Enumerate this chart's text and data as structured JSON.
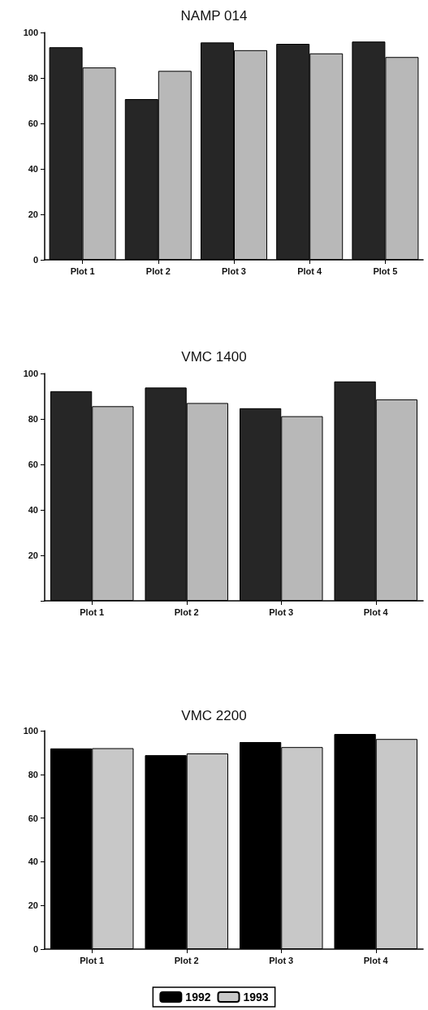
{
  "chart_data": [
    {
      "type": "bar",
      "title": "NAMP 014",
      "categories": [
        "Plot 1",
        "Plot 2",
        "Plot 3",
        "Plot 4",
        "Plot 5"
      ],
      "series": [
        {
          "color": "#262626",
          "values": [
            93.5,
            70.7,
            95.6,
            95,
            96
          ]
        },
        {
          "color": "#b8b8b8",
          "values": [
            84.6,
            83.1,
            92.2,
            90.8,
            89.2
          ]
        }
      ],
      "ylim": [
        0,
        100
      ],
      "yticks": [
        0,
        20,
        40,
        60,
        80,
        100
      ],
      "grid": false,
      "legend": false
    },
    {
      "type": "bar",
      "title": "VMC 1400",
      "categories": [
        "Plot 1",
        "Plot 2",
        "Plot 3",
        "Plot 4"
      ],
      "series": [
        {
          "color": "#262626",
          "values": [
            92.2,
            93.8,
            84.7,
            96.5
          ]
        },
        {
          "color": "#b8b8b8",
          "values": [
            85.6,
            87,
            81.2,
            88.6
          ]
        }
      ],
      "ylim": [
        0,
        100
      ],
      "yticks": [
        {
          "value": 0,
          "label": null
        },
        20,
        40,
        60,
        80,
        100
      ],
      "grid": false,
      "legend": false
    },
    {
      "type": "bar",
      "title": "VMC 2200",
      "categories": [
        "Plot 1",
        "Plot 2",
        "Plot 3",
        "Plot 4"
      ],
      "series": [
        {
          "name": "1992",
          "color": "#000000",
          "values": [
            91.9,
            88.8,
            94.8,
            98.5
          ]
        },
        {
          "name": "1993",
          "color": "#c8c8c8",
          "values": [
            92,
            89.6,
            92.5,
            96.2
          ]
        }
      ],
      "ylim": [
        0,
        100
      ],
      "yticks": [
        0,
        20,
        40,
        60,
        80,
        100
      ],
      "grid": false,
      "legend": "bottom"
    }
  ]
}
